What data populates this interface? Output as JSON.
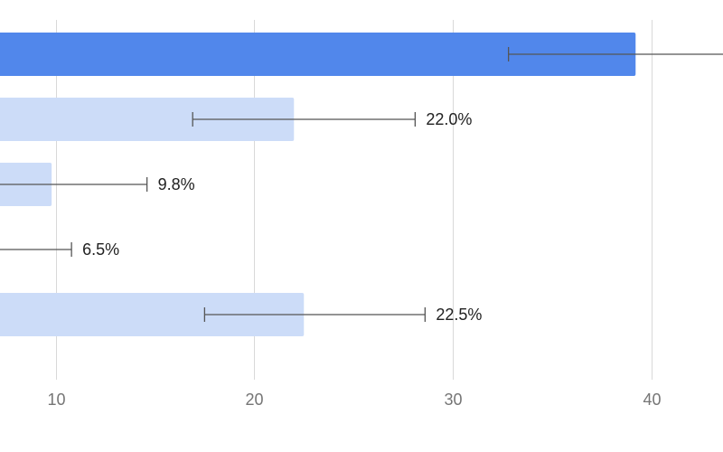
{
  "chart_data": {
    "type": "bar",
    "orientation": "horizontal",
    "xlim": [
      7.2,
      43.6
    ],
    "x_ticks": [
      "10",
      "20",
      "30",
      "40"
    ],
    "grid": true,
    "bars": [
      {
        "value": 39.2,
        "err_low": 32.8,
        "err_high": 44.0,
        "highlighted": true,
        "label": ""
      },
      {
        "value": 22.0,
        "err_low": 16.9,
        "err_high": 28.1,
        "highlighted": false,
        "label": "22.0%"
      },
      {
        "value": 9.8,
        "err_low": 5.0,
        "err_high": 14.6,
        "highlighted": false,
        "label": "9.8%"
      },
      {
        "value": 6.5,
        "err_low": 3.0,
        "err_high": 10.8,
        "highlighted": false,
        "label": "6.5%"
      },
      {
        "value": 22.5,
        "err_low": 17.5,
        "err_high": 28.6,
        "highlighted": false,
        "label": "22.5%"
      }
    ],
    "colors": {
      "highlight": "#5187EB",
      "bar": "#CCDCF8",
      "grid": "#D9D9D9",
      "error_bar": "#555555"
    }
  }
}
